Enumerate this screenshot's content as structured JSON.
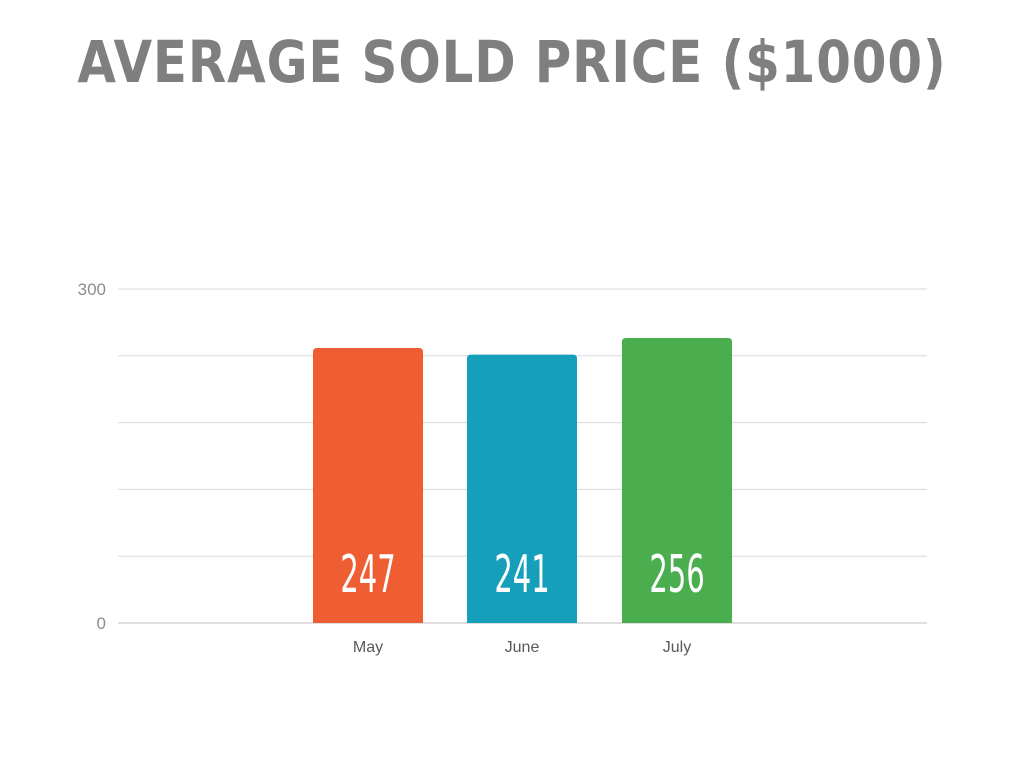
{
  "chart_data": {
    "type": "bar",
    "title": "AVERAGE SOLD PRICE ($1000)",
    "categories": [
      "May",
      "June",
      "July"
    ],
    "values": [
      247,
      241,
      256
    ],
    "colors": [
      "#ef5e33",
      "#169fbb",
      "#4aad4e"
    ],
    "data_labels": [
      "247",
      "241",
      "256"
    ],
    "ylim": [
      0,
      300
    ],
    "y_ticks": [
      "0",
      "300"
    ],
    "gridline_step": 60,
    "grid": true,
    "xlabel": "",
    "ylabel": ""
  }
}
